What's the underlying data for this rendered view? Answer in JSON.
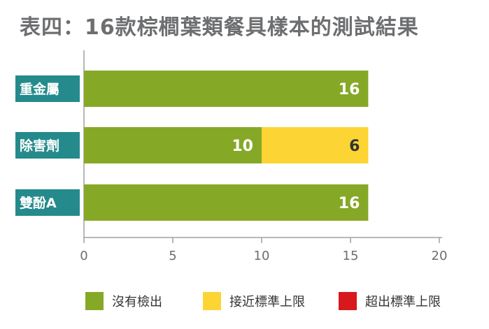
{
  "chart_data": {
    "type": "bar",
    "orientation": "horizontal",
    "stacked": true,
    "title": "表四：16款棕櫚葉類餐具樣本的測試結果",
    "categories": [
      "重金屬",
      "除害劑",
      "雙酚A"
    ],
    "series": [
      {
        "name": "沒有檢出",
        "color": "#86a827",
        "label_color": "#ffffff",
        "values": [
          16,
          10,
          16
        ]
      },
      {
        "name": "接近標準上限",
        "color": "#fcd434",
        "label_color": "#333333",
        "values": [
          0,
          6,
          0
        ]
      },
      {
        "name": "超出標準上限",
        "color": "#d7191e",
        "label_color": "#ffffff",
        "values": [
          0,
          0,
          0
        ]
      }
    ],
    "xlim": [
      0,
      20
    ],
    "xticks": [
      0,
      5,
      10,
      15,
      20
    ],
    "grid": false,
    "legend_position": "bottom",
    "category_label_color": "#258a8b",
    "axis_color": "#a0a0a0"
  }
}
